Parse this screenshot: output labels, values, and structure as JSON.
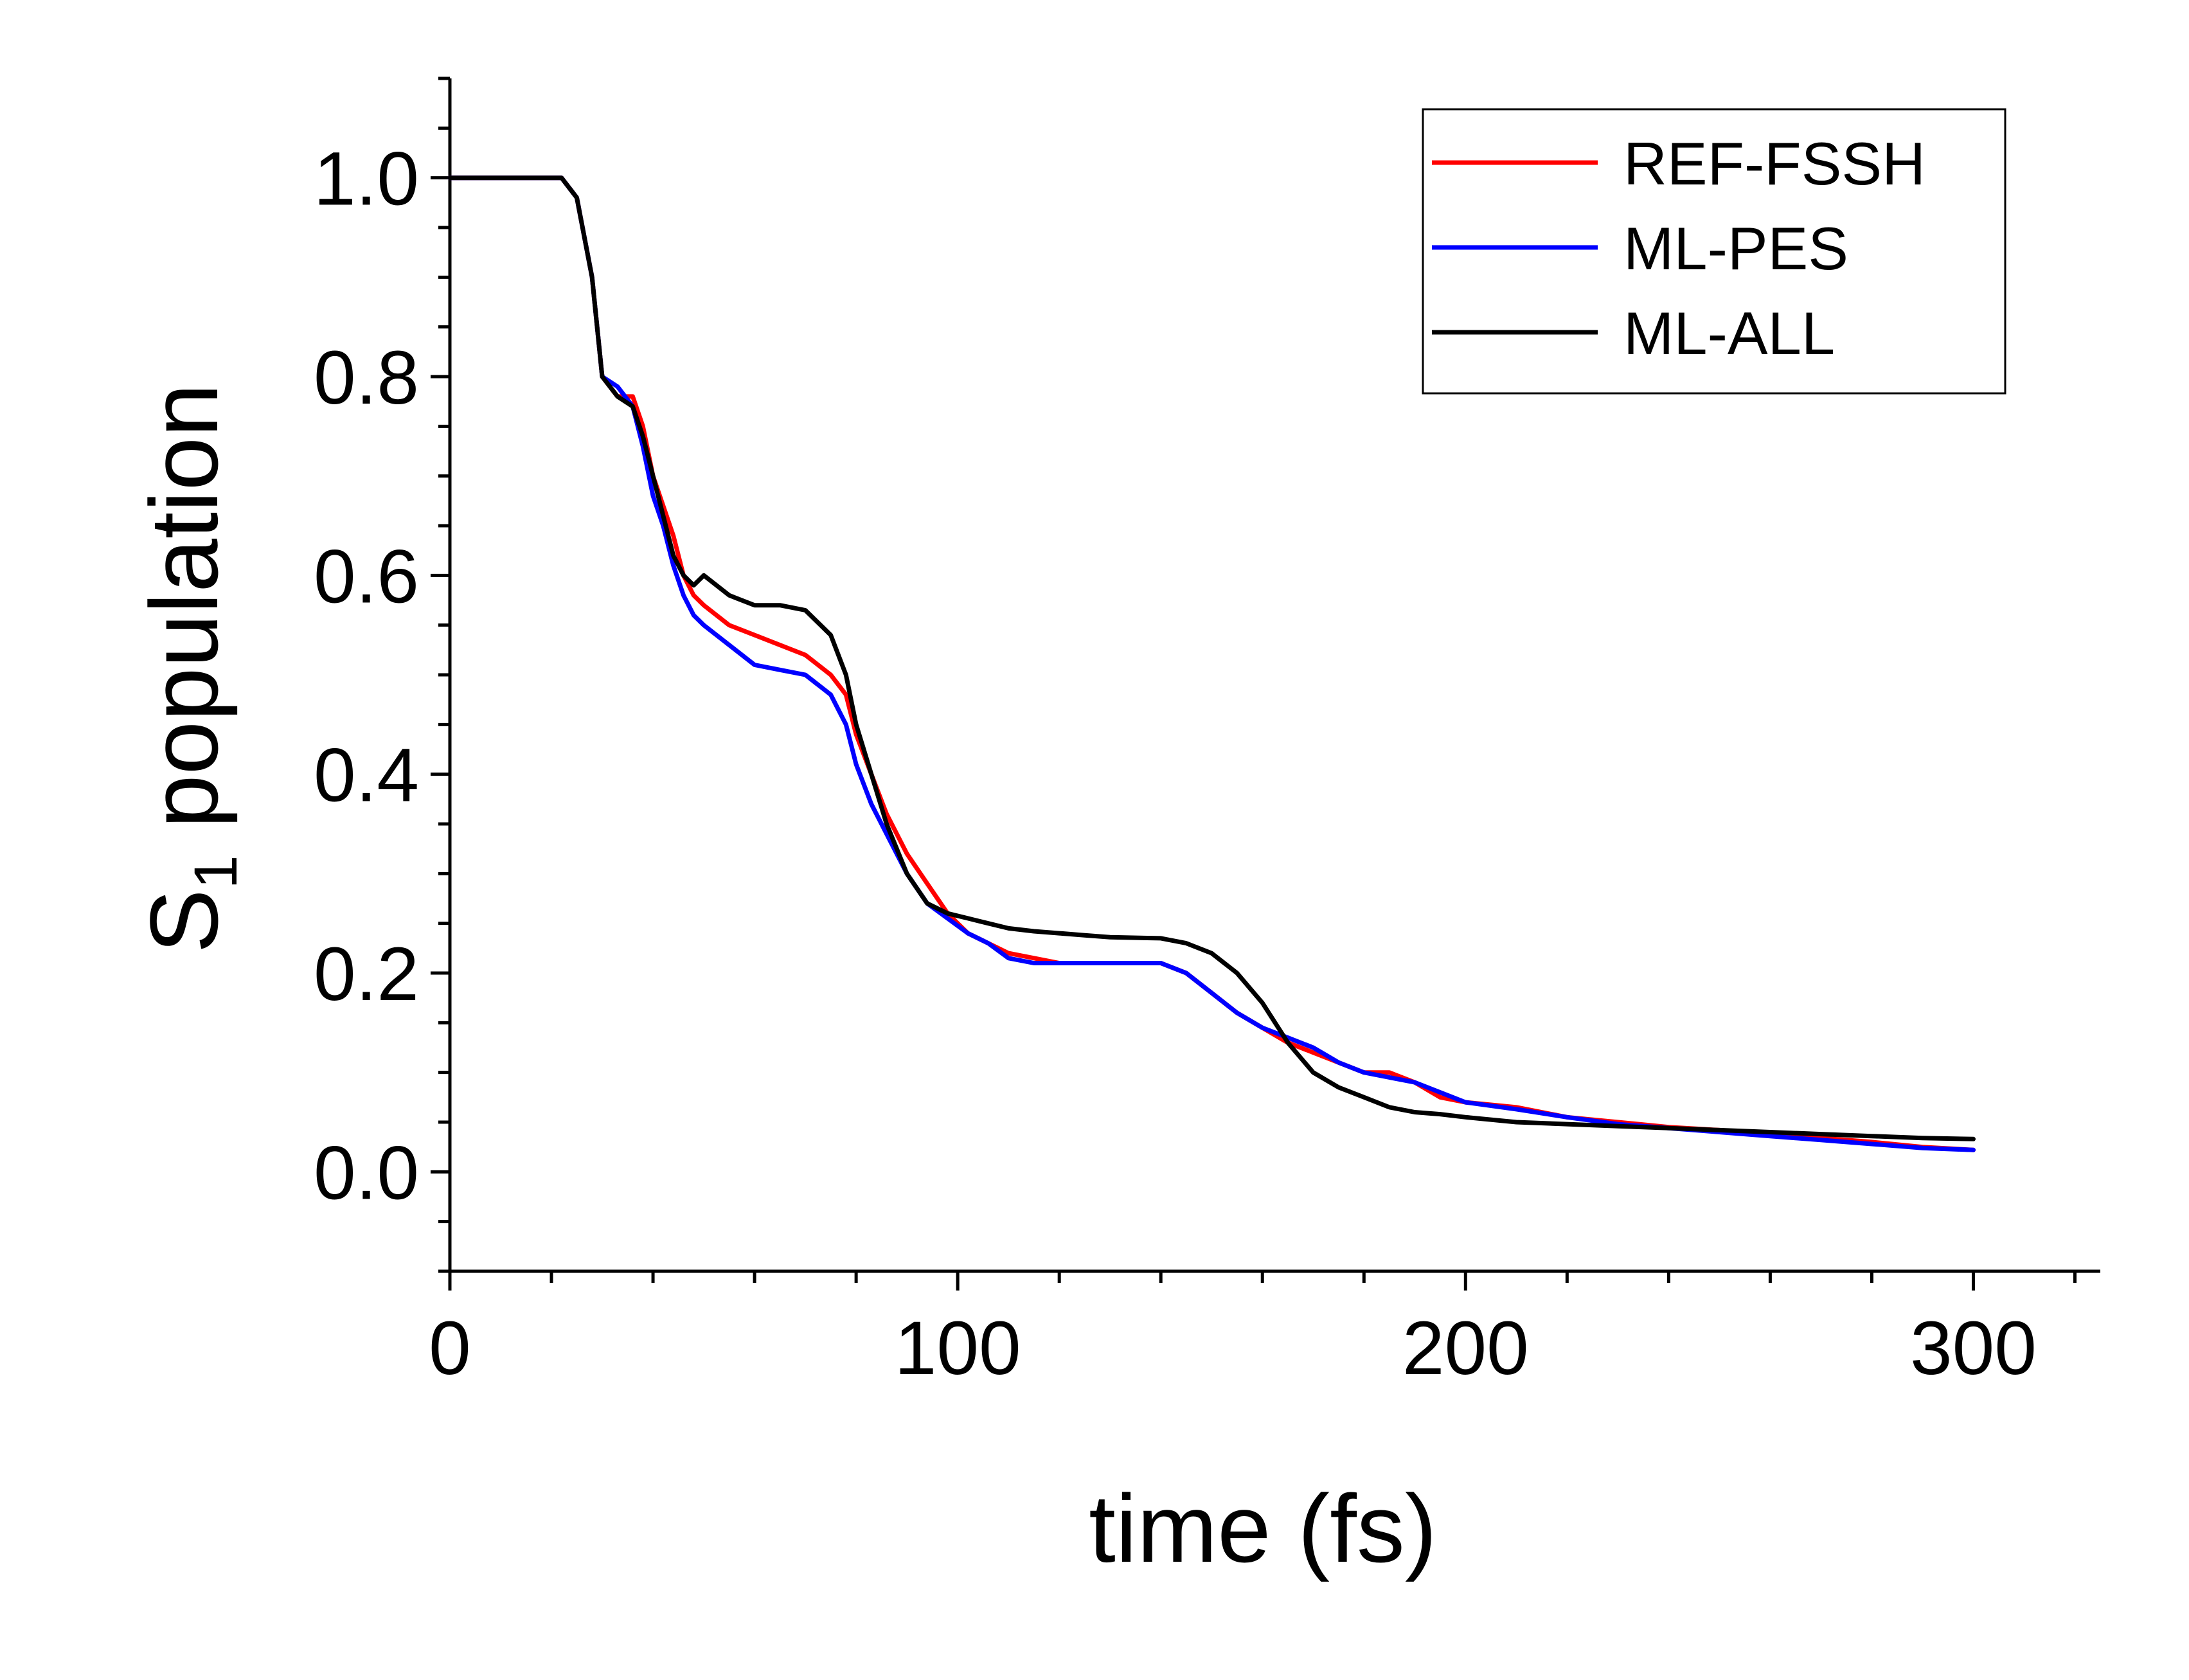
{
  "chart_data": {
    "type": "line",
    "title": "",
    "xlabel": "time (fs)",
    "ylabel_main": "S",
    "ylabel_sub": "1",
    "ylabel_rest": " population",
    "xlim": [
      0,
      325
    ],
    "ylim": [
      -0.1,
      1.1
    ],
    "xticks": [
      0,
      100,
      200,
      300
    ],
    "xtick_labels": [
      "0",
      "100",
      "200",
      "300"
    ],
    "yticks": [
      0.0,
      0.2,
      0.4,
      0.6,
      0.8,
      1.0
    ],
    "ytick_labels": [
      "0.0",
      "0.2",
      "0.4",
      "0.6",
      "0.8",
      "1.0"
    ],
    "legend_position": "top-right",
    "series": [
      {
        "name": "REF-FSSH",
        "color": "#ff0000",
        "x": [
          0,
          20,
          22,
          25,
          28,
          30,
          33,
          36,
          38,
          40,
          42,
          44,
          46,
          48,
          50,
          55,
          60,
          65,
          70,
          75,
          78,
          80,
          83,
          86,
          90,
          94,
          98,
          102,
          106,
          110,
          115,
          120,
          125,
          130,
          140,
          145,
          150,
          155,
          160,
          165,
          170,
          175,
          180,
          185,
          190,
          195,
          200,
          210,
          220,
          230,
          240,
          250,
          260,
          270,
          280,
          290,
          300
        ],
        "y": [
          1.0,
          1.0,
          1.0,
          0.98,
          0.9,
          0.8,
          0.78,
          0.78,
          0.75,
          0.7,
          0.67,
          0.64,
          0.6,
          0.58,
          0.57,
          0.55,
          0.54,
          0.53,
          0.52,
          0.5,
          0.48,
          0.44,
          0.4,
          0.36,
          0.32,
          0.29,
          0.26,
          0.24,
          0.23,
          0.22,
          0.215,
          0.21,
          0.21,
          0.21,
          0.21,
          0.2,
          0.18,
          0.16,
          0.145,
          0.13,
          0.12,
          0.11,
          0.1,
          0.1,
          0.09,
          0.075,
          0.07,
          0.065,
          0.055,
          0.05,
          0.045,
          0.042,
          0.038,
          0.034,
          0.03,
          0.025,
          0.022
        ]
      },
      {
        "name": "ML-PES",
        "color": "#0000ff",
        "x": [
          0,
          20,
          22,
          25,
          28,
          30,
          33,
          36,
          38,
          40,
          42,
          44,
          46,
          48,
          50,
          55,
          60,
          65,
          70,
          75,
          78,
          80,
          83,
          86,
          90,
          94,
          98,
          102,
          106,
          110,
          115,
          120,
          125,
          130,
          140,
          145,
          150,
          155,
          160,
          165,
          170,
          175,
          180,
          185,
          190,
          195,
          200,
          210,
          220,
          230,
          240,
          250,
          260,
          270,
          280,
          290,
          300
        ],
        "y": [
          1.0,
          1.0,
          1.0,
          0.98,
          0.9,
          0.8,
          0.79,
          0.77,
          0.73,
          0.68,
          0.65,
          0.61,
          0.58,
          0.56,
          0.55,
          0.53,
          0.51,
          0.505,
          0.5,
          0.48,
          0.45,
          0.41,
          0.37,
          0.34,
          0.3,
          0.27,
          0.255,
          0.24,
          0.23,
          0.215,
          0.21,
          0.21,
          0.21,
          0.21,
          0.21,
          0.2,
          0.18,
          0.16,
          0.145,
          0.135,
          0.125,
          0.11,
          0.1,
          0.095,
          0.09,
          0.08,
          0.07,
          0.063,
          0.055,
          0.048,
          0.044,
          0.04,
          0.036,
          0.032,
          0.028,
          0.024,
          0.022
        ]
      },
      {
        "name": "ML-ALL",
        "color": "#000000",
        "x": [
          0,
          20,
          22,
          25,
          28,
          30,
          33,
          36,
          38,
          40,
          42,
          44,
          46,
          48,
          50,
          55,
          60,
          65,
          70,
          75,
          78,
          80,
          83,
          86,
          90,
          94,
          98,
          102,
          106,
          110,
          115,
          120,
          125,
          130,
          140,
          145,
          150,
          155,
          160,
          165,
          170,
          175,
          180,
          185,
          190,
          195,
          200,
          210,
          220,
          230,
          240,
          250,
          260,
          270,
          280,
          290,
          300
        ],
        "y": [
          1.0,
          1.0,
          1.0,
          0.98,
          0.9,
          0.8,
          0.78,
          0.77,
          0.74,
          0.7,
          0.66,
          0.62,
          0.6,
          0.59,
          0.6,
          0.58,
          0.57,
          0.57,
          0.565,
          0.54,
          0.5,
          0.45,
          0.4,
          0.35,
          0.3,
          0.27,
          0.26,
          0.255,
          0.25,
          0.245,
          0.242,
          0.24,
          0.238,
          0.236,
          0.235,
          0.23,
          0.22,
          0.2,
          0.17,
          0.13,
          0.1,
          0.085,
          0.075,
          0.065,
          0.06,
          0.058,
          0.055,
          0.05,
          0.048,
          0.046,
          0.044,
          0.042,
          0.04,
          0.038,
          0.036,
          0.034,
          0.033
        ]
      }
    ]
  }
}
